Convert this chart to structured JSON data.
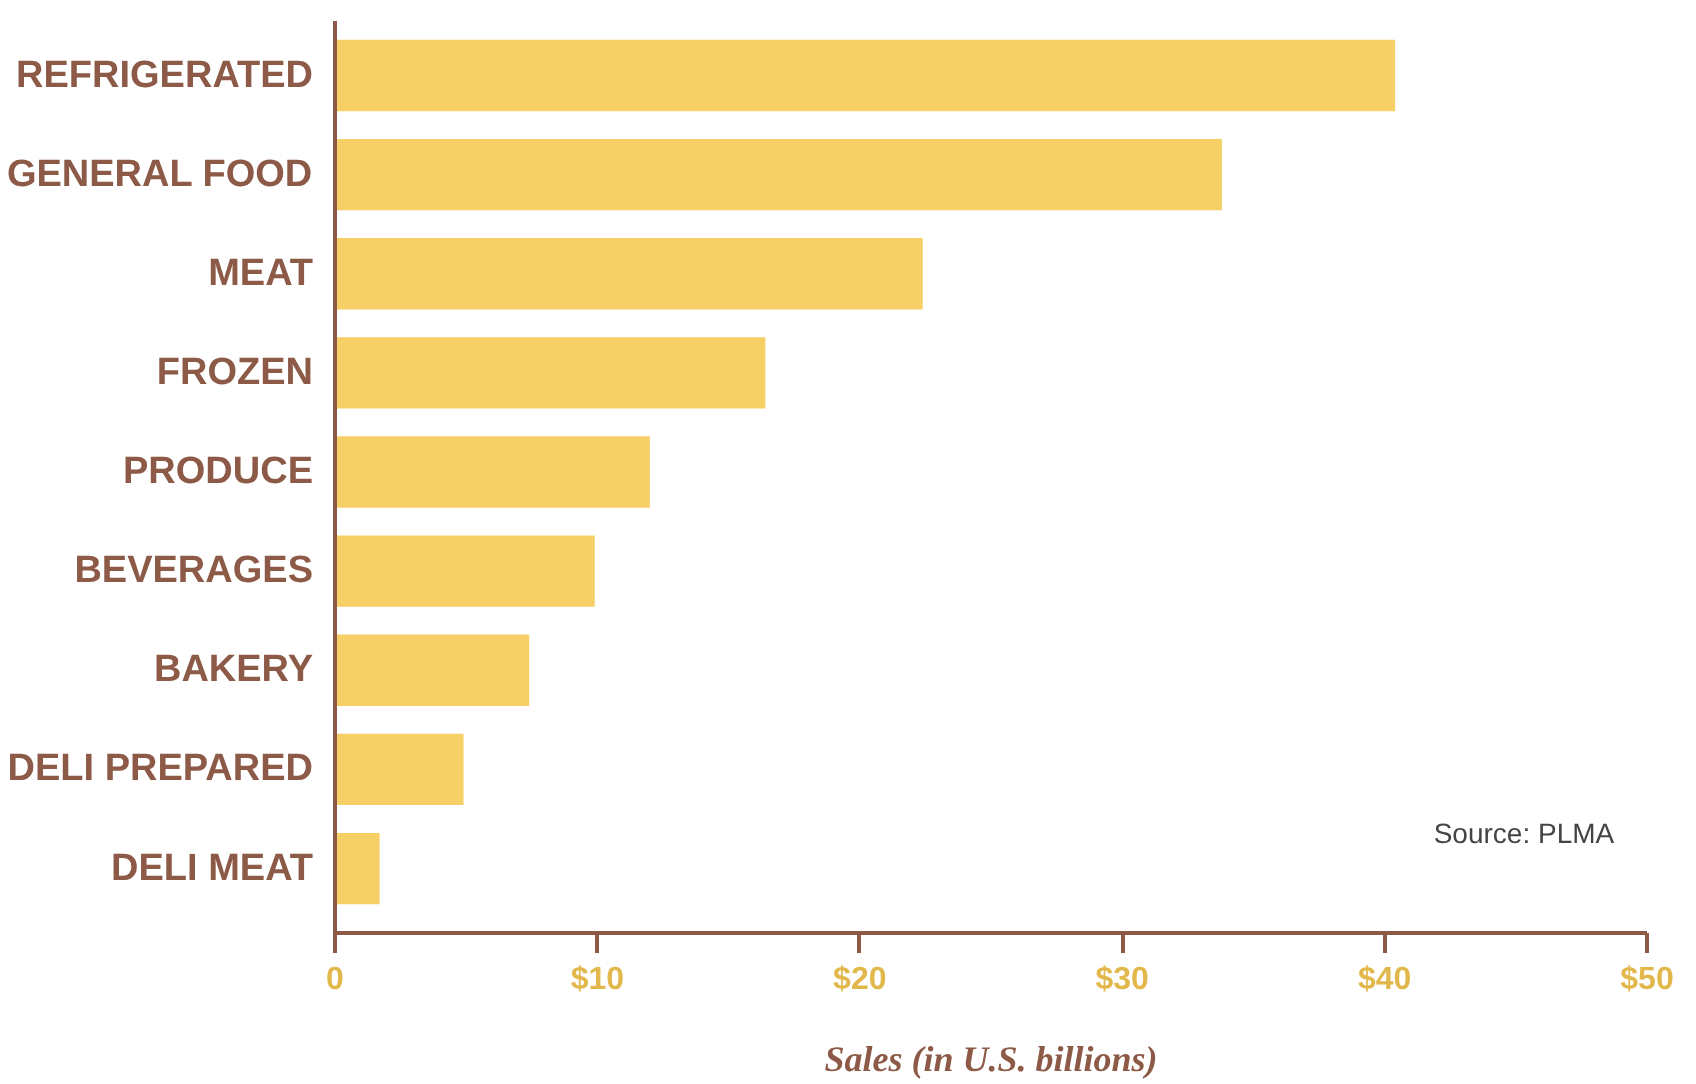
{
  "chart_data": {
    "type": "bar",
    "orientation": "horizontal",
    "xlabel": "Sales (in U.S. billions)",
    "categories": [
      "REFRIGERATED",
      "GENERAL FOOD",
      "MEAT",
      "FROZEN",
      "PRODUCE",
      "BEVERAGES",
      "BAKERY",
      "DELI PREPARED",
      "DELI MEAT"
    ],
    "values": [
      40.4,
      33.8,
      22.4,
      16.4,
      12.0,
      9.9,
      7.4,
      4.9,
      1.7
    ],
    "color": "#f6d066",
    "xlim": [
      0,
      50
    ],
    "xticks": [
      {
        "value": 0,
        "label": "0"
      },
      {
        "value": 10,
        "label": "$10"
      },
      {
        "value": 20,
        "label": "$20"
      },
      {
        "value": 30,
        "label": "$30"
      },
      {
        "value": 40,
        "label": "$40"
      },
      {
        "value": 50,
        "label": "$50"
      }
    ],
    "grid": false,
    "annotations": [
      "Source: PLMA"
    ]
  }
}
